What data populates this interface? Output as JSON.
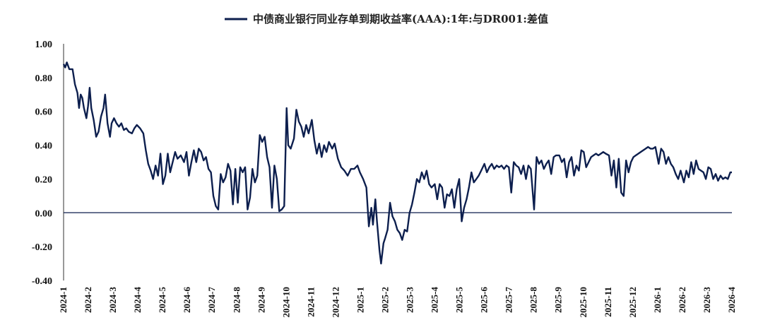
{
  "chart_data": {
    "type": "line",
    "legend_position": "top-center",
    "grid": false,
    "ylim": [
      -0.4,
      1.0
    ],
    "yticks": [
      "1.00",
      "0.80",
      "0.60",
      "0.40",
      "0.20",
      "0.00",
      "-0.20",
      "-0.40"
    ],
    "x_start": "2024-01",
    "x_end": "2026-04",
    "xticks": [
      "2024-1",
      "2024-2",
      "2024-3",
      "2024-4",
      "2024-5",
      "2024-6",
      "2024-7",
      "2024-8",
      "2024-9",
      "2024-10",
      "2024-11",
      "2024-12",
      "2025-1",
      "2025-2",
      "2025-3",
      "2025-4",
      "2025-5",
      "2025-6",
      "2025-7",
      "2025-8",
      "2025-9",
      "2025-10",
      "2025-11",
      "2025-12",
      "2026-1",
      "2026-2",
      "2026-3",
      "2026-4"
    ],
    "series": [
      {
        "name": "中债商业银行同业存单到期收益率(AAA):1年:与DR001:差值",
        "color": "#0d1f4e",
        "points": [
          [
            "2024-01-01",
            0.88
          ],
          [
            "2024-01-03",
            0.86
          ],
          [
            "2024-01-05",
            0.89
          ],
          [
            "2024-01-08",
            0.85
          ],
          [
            "2024-01-12",
            0.85
          ],
          [
            "2024-01-15",
            0.76
          ],
          [
            "2024-01-18",
            0.71
          ],
          [
            "2024-01-20",
            0.62
          ],
          [
            "2024-01-22",
            0.7
          ],
          [
            "2024-01-24",
            0.68
          ],
          [
            "2024-01-26",
            0.62
          ],
          [
            "2024-01-29",
            0.56
          ],
          [
            "2024-01-31",
            0.63
          ],
          [
            "2024-02-02",
            0.74
          ],
          [
            "2024-02-04",
            0.62
          ],
          [
            "2024-02-07",
            0.55
          ],
          [
            "2024-02-10",
            0.45
          ],
          [
            "2024-02-13",
            0.48
          ],
          [
            "2024-02-16",
            0.57
          ],
          [
            "2024-02-19",
            0.62
          ],
          [
            "2024-02-21",
            0.7
          ],
          [
            "2024-02-24",
            0.53
          ],
          [
            "2024-02-27",
            0.45
          ],
          [
            "2024-02-29",
            0.53
          ],
          [
            "2024-03-03",
            0.56
          ],
          [
            "2024-03-06",
            0.53
          ],
          [
            "2024-03-09",
            0.51
          ],
          [
            "2024-03-12",
            0.53
          ],
          [
            "2024-03-15",
            0.49
          ],
          [
            "2024-03-18",
            0.5
          ],
          [
            "2024-03-21",
            0.48
          ],
          [
            "2024-03-25",
            0.47
          ],
          [
            "2024-03-28",
            0.5
          ],
          [
            "2024-03-31",
            0.52
          ],
          [
            "2024-04-04",
            0.5
          ],
          [
            "2024-04-08",
            0.47
          ],
          [
            "2024-04-11",
            0.37
          ],
          [
            "2024-04-14",
            0.29
          ],
          [
            "2024-04-17",
            0.25
          ],
          [
            "2024-04-20",
            0.2
          ],
          [
            "2024-04-23",
            0.28
          ],
          [
            "2024-04-26",
            0.22
          ],
          [
            "2024-04-29",
            0.35
          ],
          [
            "2024-05-02",
            0.17
          ],
          [
            "2024-05-05",
            0.22
          ],
          [
            "2024-05-08",
            0.35
          ],
          [
            "2024-05-11",
            0.24
          ],
          [
            "2024-05-14",
            0.3
          ],
          [
            "2024-05-17",
            0.36
          ],
          [
            "2024-05-20",
            0.32
          ],
          [
            "2024-05-24",
            0.34
          ],
          [
            "2024-05-28",
            0.3
          ],
          [
            "2024-05-31",
            0.36
          ],
          [
            "2024-06-03",
            0.22
          ],
          [
            "2024-06-06",
            0.3
          ],
          [
            "2024-06-09",
            0.37
          ],
          [
            "2024-06-12",
            0.3
          ],
          [
            "2024-06-15",
            0.38
          ],
          [
            "2024-06-18",
            0.36
          ],
          [
            "2024-06-21",
            0.31
          ],
          [
            "2024-06-24",
            0.33
          ],
          [
            "2024-06-27",
            0.26
          ],
          [
            "2024-06-30",
            0.24
          ],
          [
            "2024-07-03",
            0.1
          ],
          [
            "2024-07-06",
            0.04
          ],
          [
            "2024-07-09",
            0.02
          ],
          [
            "2024-07-12",
            0.23
          ],
          [
            "2024-07-15",
            0.18
          ],
          [
            "2024-07-18",
            0.21
          ],
          [
            "2024-07-21",
            0.29
          ],
          [
            "2024-07-24",
            0.25
          ],
          [
            "2024-07-27",
            0.05
          ],
          [
            "2024-07-30",
            0.26
          ],
          [
            "2024-08-02",
            0.06
          ],
          [
            "2024-08-05",
            0.27
          ],
          [
            "2024-08-08",
            0.24
          ],
          [
            "2024-08-11",
            0.27
          ],
          [
            "2024-08-14",
            0.02
          ],
          [
            "2024-08-17",
            0.09
          ],
          [
            "2024-08-20",
            0.26
          ],
          [
            "2024-08-23",
            0.18
          ],
          [
            "2024-08-26",
            0.22
          ],
          [
            "2024-08-29",
            0.46
          ],
          [
            "2024-09-01",
            0.42
          ],
          [
            "2024-09-04",
            0.45
          ],
          [
            "2024-09-07",
            0.33
          ],
          [
            "2024-09-10",
            0.27
          ],
          [
            "2024-09-13",
            0.03
          ],
          [
            "2024-09-16",
            0.28
          ],
          [
            "2024-09-19",
            0.2
          ],
          [
            "2024-09-22",
            0.01
          ],
          [
            "2024-09-25",
            0.02
          ],
          [
            "2024-09-28",
            0.04
          ],
          [
            "2024-10-01",
            0.62
          ],
          [
            "2024-10-03",
            0.4
          ],
          [
            "2024-10-06",
            0.38
          ],
          [
            "2024-10-10",
            0.44
          ],
          [
            "2024-10-13",
            0.61
          ],
          [
            "2024-10-16",
            0.54
          ],
          [
            "2024-10-19",
            0.51
          ],
          [
            "2024-10-22",
            0.45
          ],
          [
            "2024-10-25",
            0.52
          ],
          [
            "2024-10-28",
            0.47
          ],
          [
            "2024-11-01",
            0.55
          ],
          [
            "2024-11-04",
            0.43
          ],
          [
            "2024-11-07",
            0.35
          ],
          [
            "2024-11-10",
            0.41
          ],
          [
            "2024-11-13",
            0.33
          ],
          [
            "2024-11-16",
            0.4
          ],
          [
            "2024-11-19",
            0.36
          ],
          [
            "2024-11-22",
            0.42
          ],
          [
            "2024-11-26",
            0.38
          ],
          [
            "2024-11-29",
            0.41
          ],
          [
            "2024-12-03",
            0.32
          ],
          [
            "2024-12-07",
            0.27
          ],
          [
            "2024-12-11",
            0.25
          ],
          [
            "2024-12-15",
            0.22
          ],
          [
            "2024-12-19",
            0.26
          ],
          [
            "2024-12-23",
            0.26
          ],
          [
            "2024-12-27",
            0.28
          ],
          [
            "2024-12-30",
            0.24
          ],
          [
            "2025-01-03",
            0.2
          ],
          [
            "2025-01-07",
            0.15
          ],
          [
            "2025-01-10",
            -0.08
          ],
          [
            "2025-01-13",
            0.03
          ],
          [
            "2025-01-15",
            -0.07
          ],
          [
            "2025-01-18",
            0.08
          ],
          [
            "2025-01-20",
            -0.05
          ],
          [
            "2025-01-23",
            -0.22
          ],
          [
            "2025-01-25",
            -0.3
          ],
          [
            "2025-01-28",
            -0.18
          ],
          [
            "2025-01-30",
            -0.15
          ],
          [
            "2025-02-02",
            -0.1
          ],
          [
            "2025-02-05",
            0.06
          ],
          [
            "2025-02-08",
            -0.02
          ],
          [
            "2025-02-11",
            -0.05
          ],
          [
            "2025-02-14",
            -0.1
          ],
          [
            "2025-02-17",
            -0.12
          ],
          [
            "2025-02-20",
            -0.16
          ],
          [
            "2025-02-23",
            -0.1
          ],
          [
            "2025-02-26",
            -0.11
          ],
          [
            "2025-03-01",
            0.0
          ],
          [
            "2025-03-04",
            0.05
          ],
          [
            "2025-03-07",
            0.12
          ],
          [
            "2025-03-10",
            0.2
          ],
          [
            "2025-03-13",
            0.18
          ],
          [
            "2025-03-16",
            0.24
          ],
          [
            "2025-03-19",
            0.2
          ],
          [
            "2025-03-22",
            0.25
          ],
          [
            "2025-03-25",
            0.17
          ],
          [
            "2025-03-28",
            0.15
          ],
          [
            "2025-04-01",
            0.17
          ],
          [
            "2025-04-04",
            0.08
          ],
          [
            "2025-04-07",
            0.17
          ],
          [
            "2025-04-10",
            0.15
          ],
          [
            "2025-04-13",
            0.03
          ],
          [
            "2025-04-16",
            0.11
          ],
          [
            "2025-04-19",
            0.1
          ],
          [
            "2025-04-22",
            0.14
          ],
          [
            "2025-04-25",
            0.03
          ],
          [
            "2025-04-28",
            0.14
          ],
          [
            "2025-05-01",
            0.2
          ],
          [
            "2025-05-04",
            -0.05
          ],
          [
            "2025-05-07",
            0.03
          ],
          [
            "2025-05-10",
            0.08
          ],
          [
            "2025-05-13",
            0.15
          ],
          [
            "2025-05-16",
            0.24
          ],
          [
            "2025-05-19",
            0.18
          ],
          [
            "2025-05-22",
            0.2
          ],
          [
            "2025-05-25",
            0.22
          ],
          [
            "2025-05-28",
            0.25
          ],
          [
            "2025-06-01",
            0.29
          ],
          [
            "2025-06-04",
            0.24
          ],
          [
            "2025-06-07",
            0.27
          ],
          [
            "2025-06-10",
            0.29
          ],
          [
            "2025-06-13",
            0.26
          ],
          [
            "2025-06-16",
            0.28
          ],
          [
            "2025-06-19",
            0.27
          ],
          [
            "2025-06-22",
            0.28
          ],
          [
            "2025-06-25",
            0.26
          ],
          [
            "2025-06-28",
            0.28
          ],
          [
            "2025-07-01",
            0.27
          ],
          [
            "2025-07-04",
            0.12
          ],
          [
            "2025-07-07",
            0.3
          ],
          [
            "2025-07-10",
            0.28
          ],
          [
            "2025-07-13",
            0.27
          ],
          [
            "2025-07-16",
            0.23
          ],
          [
            "2025-07-19",
            0.28
          ],
          [
            "2025-07-22",
            0.2
          ],
          [
            "2025-07-25",
            0.28
          ],
          [
            "2025-07-28",
            0.26
          ],
          [
            "2025-08-01",
            0.02
          ],
          [
            "2025-08-04",
            0.33
          ],
          [
            "2025-08-07",
            0.29
          ],
          [
            "2025-08-10",
            0.31
          ],
          [
            "2025-08-13",
            0.26
          ],
          [
            "2025-08-16",
            0.29
          ],
          [
            "2025-08-19",
            0.31
          ],
          [
            "2025-08-22",
            0.23
          ],
          [
            "2025-08-25",
            0.33
          ],
          [
            "2025-08-28",
            0.34
          ],
          [
            "2025-09-01",
            0.34
          ],
          [
            "2025-09-04",
            0.3
          ],
          [
            "2025-09-07",
            0.32
          ],
          [
            "2025-09-10",
            0.21
          ],
          [
            "2025-09-13",
            0.3
          ],
          [
            "2025-09-16",
            0.33
          ],
          [
            "2025-09-19",
            0.22
          ],
          [
            "2025-09-22",
            0.28
          ],
          [
            "2025-09-25",
            0.25
          ],
          [
            "2025-09-28",
            0.37
          ],
          [
            "2025-10-01",
            0.36
          ],
          [
            "2025-10-04",
            0.27
          ],
          [
            "2025-10-07",
            0.3
          ],
          [
            "2025-10-10",
            0.33
          ],
          [
            "2025-10-13",
            0.34
          ],
          [
            "2025-10-16",
            0.35
          ],
          [
            "2025-10-19",
            0.34
          ],
          [
            "2025-10-22",
            0.35
          ],
          [
            "2025-10-25",
            0.36
          ],
          [
            "2025-10-28",
            0.35
          ],
          [
            "2025-11-01",
            0.34
          ],
          [
            "2025-11-04",
            0.22
          ],
          [
            "2025-11-07",
            0.31
          ],
          [
            "2025-11-10",
            0.15
          ],
          [
            "2025-11-13",
            0.32
          ],
          [
            "2025-11-16",
            0.12
          ],
          [
            "2025-11-19",
            0.1
          ],
          [
            "2025-11-22",
            0.31
          ],
          [
            "2025-11-25",
            0.24
          ],
          [
            "2025-11-28",
            0.3
          ],
          [
            "2025-12-01",
            0.33
          ],
          [
            "2025-12-04",
            0.34
          ],
          [
            "2025-12-07",
            0.35
          ],
          [
            "2025-12-10",
            0.36
          ],
          [
            "2025-12-13",
            0.37
          ],
          [
            "2025-12-16",
            0.38
          ],
          [
            "2025-12-19",
            0.39
          ],
          [
            "2025-12-22",
            0.38
          ],
          [
            "2025-12-25",
            0.38
          ],
          [
            "2025-12-28",
            0.39
          ],
          [
            "2026-01-01",
            0.29
          ],
          [
            "2026-01-04",
            0.38
          ],
          [
            "2026-01-07",
            0.36
          ],
          [
            "2026-01-10",
            0.29
          ],
          [
            "2026-01-13",
            0.33
          ],
          [
            "2026-01-16",
            0.29
          ],
          [
            "2026-01-19",
            0.27
          ],
          [
            "2026-01-22",
            0.23
          ],
          [
            "2026-01-25",
            0.2
          ],
          [
            "2026-01-28",
            0.25
          ],
          [
            "2026-02-01",
            0.18
          ],
          [
            "2026-02-04",
            0.25
          ],
          [
            "2026-02-07",
            0.21
          ],
          [
            "2026-02-10",
            0.3
          ],
          [
            "2026-02-13",
            0.23
          ],
          [
            "2026-02-16",
            0.31
          ],
          [
            "2026-02-19",
            0.26
          ],
          [
            "2026-02-22",
            0.25
          ],
          [
            "2026-02-25",
            0.24
          ],
          [
            "2026-02-28",
            0.2
          ],
          [
            "2026-03-03",
            0.27
          ],
          [
            "2026-03-06",
            0.26
          ],
          [
            "2026-03-09",
            0.2
          ],
          [
            "2026-03-12",
            0.23
          ],
          [
            "2026-03-15",
            0.19
          ],
          [
            "2026-03-18",
            0.22
          ],
          [
            "2026-03-21",
            0.2
          ],
          [
            "2026-03-24",
            0.21
          ],
          [
            "2026-03-27",
            0.2
          ],
          [
            "2026-03-30",
            0.24
          ],
          [
            "2026-04-01",
            0.24
          ]
        ]
      }
    ]
  }
}
